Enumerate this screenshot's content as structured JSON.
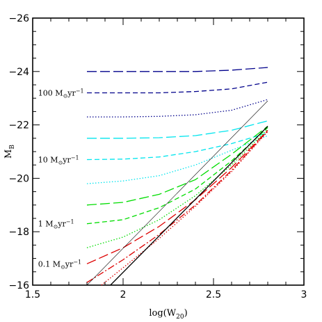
{
  "chart_data": {
    "type": "line",
    "title": "",
    "xlabel": "log(W",
    "xlabel_sub": "20",
    "xlabel_close": ")",
    "ylabel": "M",
    "ylabel_sub": "B",
    "xlim": [
      1.5,
      3.0
    ],
    "ylim": [
      -16,
      -26
    ],
    "y_inverted": true,
    "grid": false,
    "xticks": [
      {
        "value": 1.5,
        "label": "1.5"
      },
      {
        "value": 2.0,
        "label": "2"
      },
      {
        "value": 2.5,
        "label": "2.5"
      },
      {
        "value": 3.0,
        "label": "3"
      }
    ],
    "yticks": [
      {
        "value": -16,
        "label": "−16"
      },
      {
        "value": -18,
        "label": "−18"
      },
      {
        "value": -20,
        "label": "−20"
      },
      {
        "value": -22,
        "label": "−22"
      },
      {
        "value": -24,
        "label": "−24"
      },
      {
        "value": -26,
        "label": "−26"
      }
    ],
    "annotations": [
      {
        "label": "100 M",
        "sub": "⊙",
        "rest": "yr",
        "sup": "−1",
        "x": 1.53,
        "y": -23.2
      },
      {
        "label": "10 M",
        "sub": "⊙",
        "rest": "yr",
        "sup": "−1",
        "x": 1.53,
        "y": -20.7
      },
      {
        "label": "1 M",
        "sub": "⊙",
        "rest": "yr",
        "sup": "−1",
        "x": 1.53,
        "y": -18.3
      },
      {
        "label": "0.1 M",
        "sub": "⊙",
        "rest": "yr",
        "sup": "−1",
        "x": 1.53,
        "y": -16.8
      }
    ],
    "series": [
      {
        "color": "#00008b",
        "dash": "long",
        "x": [
          1.8,
          2.0,
          2.2,
          2.4,
          2.6,
          2.8
        ],
        "y": [
          -24.0,
          -24.0,
          -24.0,
          -24.0,
          -24.05,
          -24.15
        ]
      },
      {
        "color": "#00008b",
        "dash": "short",
        "x": [
          1.8,
          2.0,
          2.2,
          2.4,
          2.6,
          2.8
        ],
        "y": [
          -23.2,
          -23.2,
          -23.2,
          -23.25,
          -23.35,
          -23.6
        ]
      },
      {
        "color": "#00008b",
        "dash": "dotted",
        "x": [
          1.8,
          2.0,
          2.2,
          2.4,
          2.6,
          2.8
        ],
        "y": [
          -22.3,
          -22.3,
          -22.32,
          -22.38,
          -22.55,
          -22.95
        ]
      },
      {
        "color": "#00e5ee",
        "dash": "long",
        "x": [
          1.8,
          2.0,
          2.2,
          2.4,
          2.6,
          2.8
        ],
        "y": [
          -21.5,
          -21.5,
          -21.52,
          -21.6,
          -21.8,
          -22.15
        ]
      },
      {
        "color": "#00e5ee",
        "dash": "short",
        "x": [
          1.8,
          2.0,
          2.2,
          2.4,
          2.6,
          2.8
        ],
        "y": [
          -20.7,
          -20.72,
          -20.8,
          -21.0,
          -21.3,
          -21.7
        ]
      },
      {
        "color": "#00e5ee",
        "dash": "dotted",
        "x": [
          1.8,
          2.0,
          2.2,
          2.4,
          2.6,
          2.8
        ],
        "y": [
          -19.8,
          -19.9,
          -20.1,
          -20.5,
          -21.05,
          -21.6
        ]
      },
      {
        "color": "#00dd00",
        "dash": "long",
        "x": [
          1.8,
          2.0,
          2.2,
          2.4,
          2.6,
          2.8
        ],
        "y": [
          -19.0,
          -19.1,
          -19.4,
          -19.95,
          -20.9,
          -21.95
        ]
      },
      {
        "color": "#00dd00",
        "dash": "short",
        "x": [
          1.8,
          2.0,
          2.2,
          2.4,
          2.6,
          2.8
        ],
        "y": [
          -18.3,
          -18.45,
          -18.9,
          -19.6,
          -20.65,
          -21.9
        ]
      },
      {
        "color": "#00dd00",
        "dash": "dotted",
        "x": [
          1.8,
          2.0,
          2.2,
          2.4,
          2.6,
          2.8
        ],
        "y": [
          -17.4,
          -17.8,
          -18.45,
          -19.35,
          -20.5,
          -21.85
        ]
      },
      {
        "color": "#dd0000",
        "dash": "long",
        "x": [
          1.8,
          2.0,
          2.2,
          2.4,
          2.6,
          2.8
        ],
        "y": [
          -16.8,
          -17.4,
          -18.2,
          -19.2,
          -20.4,
          -21.8
        ]
      },
      {
        "color": "#dd0000",
        "dash": "dashdot",
        "x": [
          1.8,
          2.0,
          2.2,
          2.4,
          2.6,
          2.8
        ],
        "y": [
          -16.1,
          -16.95,
          -17.9,
          -19.0,
          -20.3,
          -21.78
        ]
      },
      {
        "color": "#dd0000",
        "dash": "dotted",
        "x": [
          1.88,
          2.0,
          2.2,
          2.4,
          2.6,
          2.8
        ],
        "y": [
          -16.0,
          -16.65,
          -17.75,
          -18.95,
          -20.25,
          -21.75
        ]
      },
      {
        "color": "#000000",
        "dash": "solid",
        "x": [
          1.93,
          2.8
        ],
        "y": [
          -16.0,
          -21.95
        ]
      },
      {
        "color": "#000000",
        "dash": "solid",
        "width": 0.6,
        "x": [
          1.8,
          2.8
        ],
        "y": [
          -16.0,
          -22.9
        ]
      }
    ]
  }
}
